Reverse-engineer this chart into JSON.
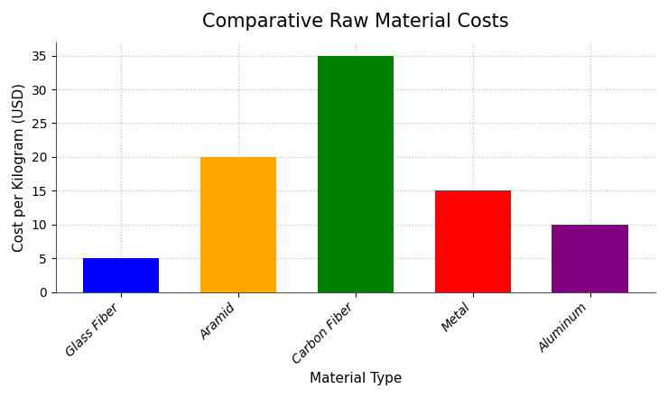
{
  "title": "Comparative Raw Material Costs",
  "xlabel": "Material Type",
  "ylabel": "Cost per Kilogram (USD)",
  "categories": [
    "Glass Fiber",
    "Aramid",
    "Carbon Fiber",
    "Metal",
    "Aluminum"
  ],
  "values": [
    5,
    20,
    35,
    15,
    10
  ],
  "bar_colors": [
    "#0000ff",
    "#ffa500",
    "#008000",
    "#ff0000",
    "#800080"
  ],
  "ylim": [
    0,
    37
  ],
  "yticks": [
    0,
    5,
    10,
    15,
    20,
    25,
    30,
    35
  ],
  "background_color": "#ffffff",
  "grid_color": "#c0c0c0",
  "title_fontsize": 15,
  "label_fontsize": 11,
  "tick_fontsize": 10,
  "bar_width": 0.65
}
